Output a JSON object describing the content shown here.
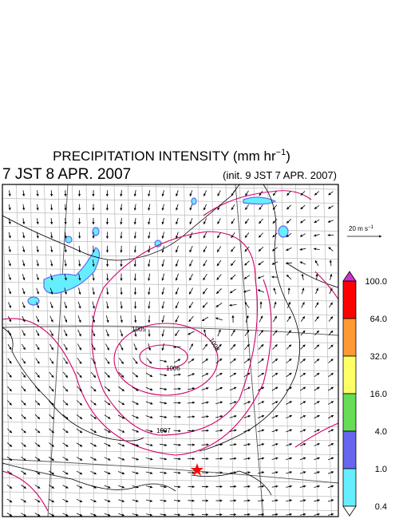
{
  "title": {
    "main": "PRECIPITATION INTENSITY (mm hr",
    "exponent": "−1",
    "close": ")"
  },
  "valid_time": "7 JST 8 APR. 2007",
  "init_time": "(init. 9 JST 7 APR. 2007)",
  "wind_scale": {
    "unit": "20 m s",
    "exponent": "−1"
  },
  "isobar_labels": [
    "1005",
    "1008",
    "1006",
    "1007"
  ],
  "colorbar": {
    "labels": [
      "100.0",
      "64.0",
      "32.0",
      "16.0",
      "4.0",
      "1.0",
      "0.4"
    ],
    "colors": [
      "#cc33cc",
      "#ff0000",
      "#ff9933",
      "#ffff66",
      "#66dd55",
      "#6666ee",
      "#66eeff",
      "#ffffff"
    ]
  }
}
